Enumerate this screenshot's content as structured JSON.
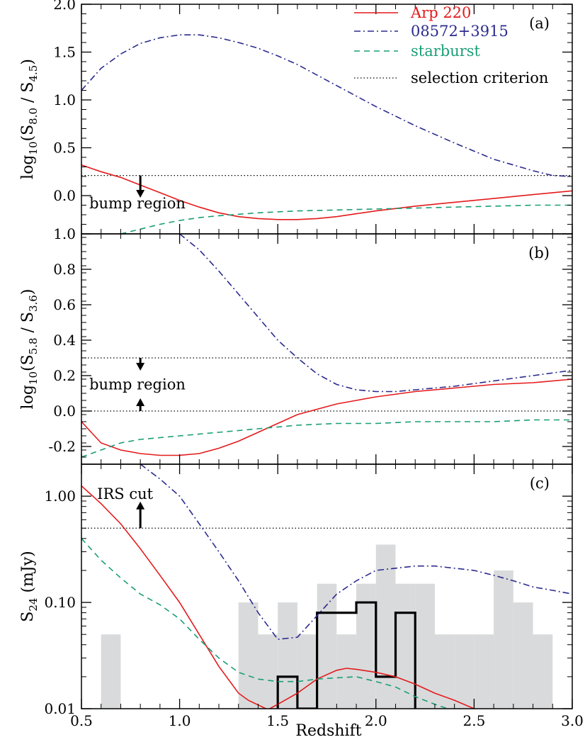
{
  "chart_data": {
    "type": "line",
    "x_axis": {
      "label": "Redshift",
      "range": [
        0.5,
        3.0
      ],
      "ticks": [
        0.5,
        1.0,
        1.5,
        2.0,
        2.5,
        3.0
      ],
      "tick_labels": [
        "0.5",
        "1.0",
        "1.5",
        "2.0",
        "2.5",
        "3.0"
      ]
    },
    "legend": {
      "placement": "top-right",
      "entries": [
        {
          "label": "Arp 220",
          "color": "#e41a1c",
          "dash": "solid"
        },
        {
          "label": "08572+3915",
          "color": "#2b2b8f",
          "dash": "dashdot"
        },
        {
          "label": "starburst",
          "color": "#1a9e77",
          "dash": "dashed"
        },
        {
          "label": "selection criterion",
          "color": "#000000",
          "dash": "dotted"
        }
      ]
    },
    "panels": [
      {
        "tag": "(a)",
        "ylabel_main": "log",
        "ylabel_sub": "10",
        "ylabel_rest": "(S",
        "ylabel_s1": "8.0",
        "ylabel_mid": " / S",
        "ylabel_s2": "4.5",
        "ylabel_end": ")",
        "yscale": "linear",
        "ylim": [
          -0.4,
          2.0
        ],
        "yticks": [
          0.0,
          0.5,
          1.0,
          1.5,
          2.0
        ],
        "ytick_labels": [
          "0.0",
          "0.5",
          "1.0",
          "1.5",
          "2.0"
        ],
        "hlines": [
          0.21
        ],
        "annotation": {
          "text": "bump region",
          "x": 0.54,
          "y": -0.08
        },
        "arrows": [
          {
            "x": 0.8,
            "from": 0.21,
            "to": 0.0
          }
        ],
        "series": [
          {
            "name": "Arp 220",
            "color": "#e41a1c",
            "dash": "solid",
            "x": [
              0.5,
              0.6,
              0.7,
              0.8,
              0.9,
              1.0,
              1.1,
              1.2,
              1.3,
              1.4,
              1.5,
              1.6,
              1.7,
              1.8,
              1.9,
              2.0,
              2.2,
              2.4,
              2.6,
              2.8,
              3.0
            ],
            "y": [
              0.32,
              0.25,
              0.19,
              0.11,
              0.03,
              -0.05,
              -0.12,
              -0.18,
              -0.22,
              -0.24,
              -0.25,
              -0.25,
              -0.24,
              -0.22,
              -0.19,
              -0.16,
              -0.11,
              -0.07,
              -0.03,
              0.01,
              0.05
            ]
          },
          {
            "name": "08572+3915",
            "color": "#2b2b8f",
            "dash": "dashdot",
            "x": [
              0.5,
              0.6,
              0.7,
              0.8,
              0.9,
              1.0,
              1.1,
              1.2,
              1.3,
              1.4,
              1.5,
              1.6,
              1.7,
              1.8,
              1.9,
              2.0,
              2.2,
              2.4,
              2.6,
              2.8,
              2.9,
              3.0
            ],
            "y": [
              1.1,
              1.33,
              1.48,
              1.59,
              1.65,
              1.68,
              1.68,
              1.65,
              1.6,
              1.54,
              1.46,
              1.37,
              1.26,
              1.15,
              1.04,
              0.93,
              0.73,
              0.55,
              0.38,
              0.26,
              0.21,
              0.2
            ]
          },
          {
            "name": "starburst",
            "color": "#1a9e77",
            "dash": "dashed",
            "x": [
              0.5,
              0.6,
              0.7,
              0.8,
              0.9,
              1.0,
              1.1,
              1.2,
              1.4,
              1.6,
              1.8,
              2.0,
              2.2,
              2.4,
              2.6,
              2.8,
              3.0
            ],
            "y": [
              -0.46,
              -0.44,
              -0.4,
              -0.35,
              -0.3,
              -0.26,
              -0.23,
              -0.21,
              -0.18,
              -0.16,
              -0.15,
              -0.14,
              -0.13,
              -0.12,
              -0.11,
              -0.1,
              -0.1
            ]
          }
        ]
      },
      {
        "tag": "(b)",
        "ylabel_main": "log",
        "ylabel_sub": "10",
        "ylabel_rest": "(S",
        "ylabel_s1": "5.8",
        "ylabel_mid": " / S",
        "ylabel_s2": "3.6",
        "ylabel_end": ")",
        "yscale": "linear",
        "ylim": [
          -0.3,
          1.0
        ],
        "yticks": [
          -0.2,
          0.0,
          0.2,
          0.4,
          0.6,
          0.8,
          1.0
        ],
        "ytick_labels": [
          "-0.2",
          "0.0",
          "0.2",
          "0.4",
          "0.6",
          "0.8",
          "1.0"
        ],
        "hlines": [
          0.3,
          0.0
        ],
        "annotation": {
          "text": "bump region",
          "x": 0.54,
          "y": 0.15
        },
        "arrows": [
          {
            "x": 0.8,
            "from": 0.3,
            "to": 0.24
          },
          {
            "x": 0.8,
            "from": 0.0,
            "to": 0.06
          }
        ],
        "series": [
          {
            "name": "Arp 220",
            "color": "#e41a1c",
            "dash": "solid",
            "x": [
              0.5,
              0.6,
              0.7,
              0.8,
              0.9,
              1.0,
              1.1,
              1.2,
              1.3,
              1.4,
              1.5,
              1.6,
              1.7,
              1.8,
              1.9,
              2.0,
              2.2,
              2.4,
              2.6,
              2.8,
              3.0
            ],
            "y": [
              -0.06,
              -0.18,
              -0.22,
              -0.24,
              -0.25,
              -0.25,
              -0.24,
              -0.21,
              -0.17,
              -0.12,
              -0.07,
              -0.02,
              0.01,
              0.04,
              0.06,
              0.08,
              0.11,
              0.13,
              0.15,
              0.16,
              0.18
            ]
          },
          {
            "name": "08572+3915",
            "color": "#2b2b8f",
            "dash": "dashdot",
            "x": [
              1.0,
              1.1,
              1.2,
              1.3,
              1.4,
              1.5,
              1.6,
              1.7,
              1.8,
              1.9,
              2.0,
              2.1,
              2.2,
              2.4,
              2.6,
              2.8,
              3.0
            ],
            "y": [
              1.0,
              0.91,
              0.79,
              0.66,
              0.53,
              0.4,
              0.3,
              0.21,
              0.15,
              0.12,
              0.11,
              0.11,
              0.12,
              0.14,
              0.17,
              0.2,
              0.23
            ]
          },
          {
            "name": "starburst",
            "color": "#1a9e77",
            "dash": "dashed",
            "x": [
              0.5,
              0.6,
              0.7,
              0.8,
              0.9,
              1.0,
              1.2,
              1.4,
              1.6,
              1.8,
              2.0,
              2.2,
              2.4,
              2.6,
              2.8,
              3.0
            ],
            "y": [
              -0.26,
              -0.22,
              -0.18,
              -0.16,
              -0.15,
              -0.14,
              -0.12,
              -0.1,
              -0.08,
              -0.07,
              -0.07,
              -0.06,
              -0.06,
              -0.06,
              -0.05,
              -0.05
            ]
          }
        ]
      },
      {
        "tag": "(c)",
        "ylabel_main": "S",
        "ylabel_sub": "24",
        "ylabel_rest": " (mJy)",
        "ylabel_s1": "",
        "ylabel_mid": "",
        "ylabel_s2": "",
        "ylabel_end": "",
        "yscale": "log",
        "ylim": [
          0.01,
          2.0
        ],
        "yticks": [
          0.01,
          0.1,
          1.0
        ],
        "ytick_labels": [
          "0.01",
          "0.10",
          "1.00"
        ],
        "hlines": [
          0.5
        ],
        "annotation": {
          "text": "IRS cut",
          "x": 0.58,
          "y": 1.05
        },
        "arrows": [
          {
            "x": 0.8,
            "from": 0.5,
            "to": 0.85
          }
        ],
        "series": [
          {
            "name": "Arp 220",
            "color": "#e41a1c",
            "dash": "solid",
            "x": [
              0.5,
              0.6,
              0.7,
              0.8,
              0.9,
              1.0,
              1.1,
              1.2,
              1.3,
              1.35,
              1.45,
              1.5,
              1.6,
              1.7,
              1.8,
              1.85,
              1.9,
              2.0,
              2.1,
              2.2,
              2.3,
              2.4,
              2.5
            ],
            "y": [
              1.25,
              0.85,
              0.55,
              0.32,
              0.18,
              0.1,
              0.05,
              0.025,
              0.014,
              0.012,
              0.0098,
              0.011,
              0.014,
              0.019,
              0.023,
              0.024,
              0.0235,
              0.022,
              0.02,
              0.017,
              0.014,
              0.012,
              0.01
            ]
          },
          {
            "name": "08572+3915",
            "color": "#2b2b8f",
            "dash": "dashdot",
            "x": [
              0.8,
              0.9,
              1.0,
              1.1,
              1.2,
              1.3,
              1.4,
              1.5,
              1.6,
              1.7,
              1.8,
              1.9,
              2.0,
              2.1,
              2.2,
              2.3,
              2.4,
              2.5,
              2.6,
              2.7,
              2.8,
              2.9,
              3.0
            ],
            "y": [
              2.0,
              1.45,
              1.0,
              0.55,
              0.3,
              0.16,
              0.08,
              0.045,
              0.047,
              0.075,
              0.12,
              0.16,
              0.2,
              0.21,
              0.22,
              0.22,
              0.21,
              0.2,
              0.18,
              0.16,
              0.14,
              0.13,
              0.12
            ]
          },
          {
            "name": "starburst",
            "color": "#1a9e77",
            "dash": "dashed",
            "x": [
              0.5,
              0.6,
              0.7,
              0.8,
              0.9,
              1.0,
              1.1,
              1.2,
              1.3,
              1.4,
              1.5,
              1.6,
              1.7,
              1.8,
              1.9,
              2.0,
              2.1,
              2.2,
              2.3,
              2.4
            ],
            "y": [
              0.4,
              0.25,
              0.17,
              0.12,
              0.095,
              0.07,
              0.045,
              0.03,
              0.022,
              0.019,
              0.018,
              0.018,
              0.019,
              0.0195,
              0.02,
              0.018,
              0.016,
              0.013,
              0.011,
              0.0095
            ]
          }
        ],
        "histogram_gray": {
          "bin_edges": [
            0.6,
            0.7,
            0.8,
            0.9,
            1.0,
            1.1,
            1.2,
            1.3,
            1.4,
            1.5,
            1.6,
            1.7,
            1.8,
            1.9,
            2.0,
            2.1,
            2.2,
            2.3,
            2.4,
            2.5,
            2.6,
            2.7,
            2.8,
            2.9
          ],
          "counts": [
            0.05,
            0,
            0,
            0,
            0,
            0,
            0,
            0.1,
            0.05,
            0.1,
            0.05,
            0.15,
            0.05,
            0.15,
            0.35,
            0.15,
            0.15,
            0.05,
            0.05,
            0.05,
            0.2,
            0.1,
            0.05
          ],
          "color": "#d9dadb"
        },
        "histogram_black": {
          "bin_edges": [
            1.5,
            1.6,
            1.7,
            1.8,
            1.9,
            2.0,
            2.1,
            2.2
          ],
          "counts": [
            0.02,
            0.01,
            0.08,
            0.08,
            0.1,
            0.02,
            0.08
          ],
          "color": "#000000"
        }
      }
    ]
  }
}
